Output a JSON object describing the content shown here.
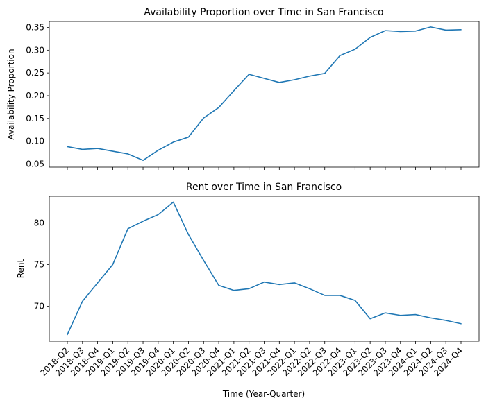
{
  "chart_data": [
    {
      "type": "line",
      "title": "Availability Proportion over Time in San Francisco",
      "xlabel": "",
      "ylabel": "Availability Proportion",
      "ylim": [
        0.043,
        0.363
      ],
      "yticks": [
        "0.05",
        "0.10",
        "0.15",
        "0.20",
        "0.25",
        "0.30",
        "0.35"
      ],
      "x": [
        "2018-Q2",
        "2018-Q3",
        "2018-Q4",
        "2019-Q1",
        "2019-Q2",
        "2019-Q3",
        "2019-Q4",
        "2020-Q1",
        "2020-Q2",
        "2020-Q3",
        "2020-Q4",
        "2021-Q1",
        "2021-Q2",
        "2021-Q3",
        "2021-Q4",
        "2022-Q1",
        "2022-Q2",
        "2022-Q3",
        "2022-Q4",
        "2023-Q1",
        "2023-Q2",
        "2023-Q3",
        "2023-Q4",
        "2024-Q1",
        "2024-Q2",
        "2024-Q3",
        "2024-Q4"
      ],
      "series": [
        {
          "color": "#1f77b4",
          "values": [
            0.088,
            0.082,
            0.084,
            0.078,
            0.072,
            0.058,
            0.08,
            0.098,
            0.109,
            0.151,
            0.174,
            0.211,
            0.247,
            0.238,
            0.229,
            0.235,
            0.243,
            0.249,
            0.288,
            0.302,
            0.328,
            0.343,
            0.341,
            0.342,
            0.351,
            0.344,
            0.345
          ]
        }
      ],
      "grid": false
    },
    {
      "type": "line",
      "title": "Rent over Time in San Francisco",
      "xlabel": "Time (Year-Quarter)",
      "ylabel": "Rent",
      "ylim": [
        65.8,
        83.2
      ],
      "yticks": [
        "70",
        "75",
        "80"
      ],
      "x": [
        "2018-Q2",
        "2018-Q3",
        "2018-Q4",
        "2019-Q1",
        "2019-Q2",
        "2019-Q3",
        "2019-Q4",
        "2020-Q1",
        "2020-Q2",
        "2020-Q3",
        "2020-Q4",
        "2021-Q1",
        "2021-Q2",
        "2021-Q3",
        "2021-Q4",
        "2022-Q1",
        "2022-Q2",
        "2022-Q3",
        "2022-Q4",
        "2023-Q1",
        "2023-Q2",
        "2023-Q3",
        "2023-Q4",
        "2024-Q1",
        "2024-Q2",
        "2024-Q3",
        "2024-Q4"
      ],
      "series": [
        {
          "color": "#1f77b4",
          "values": [
            66.6,
            70.6,
            72.8,
            75.0,
            79.3,
            80.2,
            81.0,
            82.5,
            78.6,
            75.5,
            72.5,
            71.9,
            72.1,
            72.9,
            72.6,
            72.8,
            72.1,
            71.3,
            71.3,
            70.7,
            68.5,
            69.2,
            68.9,
            69.0,
            68.6,
            68.3,
            67.9
          ]
        }
      ],
      "grid": false
    }
  ]
}
